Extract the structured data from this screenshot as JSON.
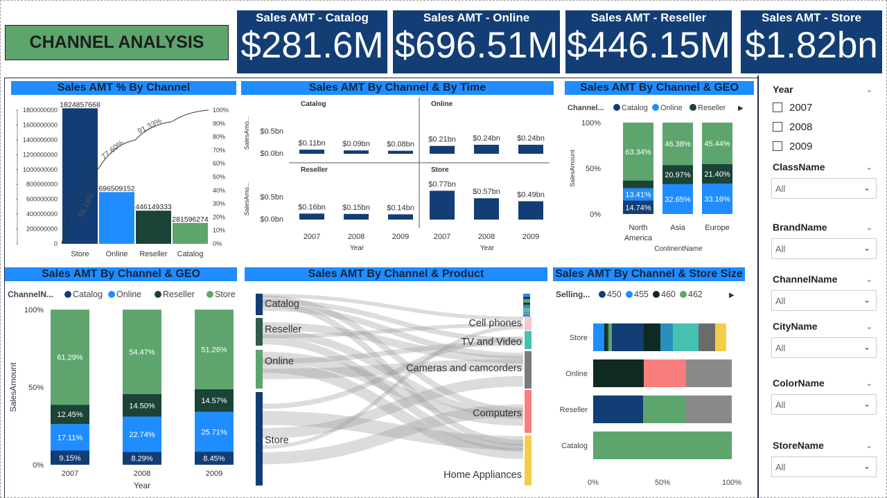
{
  "title": "CHANNEL ANALYSIS",
  "colors": {
    "navy": "#123d75",
    "catalog": "#123d75",
    "online": "#1f8dff",
    "reseller": "#1b4336",
    "store": "#5da56d",
    "header": "#1f8dff"
  },
  "kpis": [
    {
      "label": "Sales AMT - Catalog",
      "value": "$281.6M"
    },
    {
      "label": "Sales AMT - Online",
      "value": "$696.51M"
    },
    {
      "label": "Sales AMT - Reseller",
      "value": "$446.15M"
    },
    {
      "label": "Sales AMT - Store",
      "value": "$1.82bn"
    }
  ],
  "panels": {
    "pareto": "Sales AMT % By Channel",
    "time": "Sales AMT By Channel & By Time",
    "geo_top": "Sales AMT By Channel & GEO",
    "geo_bottom": "Sales AMT By Channel & GEO",
    "product": "Sales AMT By Channel & Product",
    "storesize": "Sales AMT By Channel & Store Size"
  },
  "chart_data": [
    {
      "type": "bar",
      "title": "Sales AMT % By Channel",
      "categories": [
        "Store",
        "Online",
        "Reseller",
        "Catalog"
      ],
      "values": [
        1824857668,
        696509152,
        446149333,
        281596274
      ],
      "value_labels": [
        "1824857668",
        "696509152",
        "446149333",
        "281596274"
      ],
      "cumulative_pct": [
        56.16,
        77.6,
        91.33,
        100
      ],
      "cumulative_labels": [
        "56.16%",
        "77.60%",
        "91.33%"
      ],
      "y_ticks": [
        "0",
        "200000000",
        "400000000",
        "600000000",
        "800000000",
        "1000000000",
        "1200000000",
        "1400000000",
        "1600000000",
        "1800000000"
      ],
      "y2_ticks": [
        "0%",
        "10%",
        "20%",
        "30%",
        "40%",
        "50%",
        "60%",
        "70%",
        "80%",
        "90%",
        "100%"
      ],
      "ylim": [
        0,
        1800000000
      ]
    },
    {
      "type": "bar",
      "title": "Sales AMT By Channel & By Time",
      "ylabel": "SalesAmo...",
      "xlabel": "Year",
      "y_ticks": [
        "$0.0bn",
        "$0.5bn"
      ],
      "ylim_bn": [
        0,
        1
      ],
      "facets": [
        {
          "name": "Catalog",
          "categories": [
            "2007",
            "2008",
            "2009"
          ],
          "values": [
            0.11,
            0.09,
            0.08
          ],
          "labels": [
            "$0.11bn",
            "$0.09bn",
            "$0.08bn"
          ]
        },
        {
          "name": "Online",
          "categories": [
            "2007",
            "2008",
            "2009"
          ],
          "values": [
            0.21,
            0.24,
            0.24
          ],
          "labels": [
            "$0.21bn",
            "$0.24bn",
            "$0.24bn"
          ]
        },
        {
          "name": "Reseller",
          "categories": [
            "2007",
            "2008",
            "2009"
          ],
          "values": [
            0.16,
            0.15,
            0.14
          ],
          "labels": [
            "$0.16bn",
            "$0.15bn",
            "$0.14bn"
          ]
        },
        {
          "name": "Store",
          "categories": [
            "2007",
            "2008",
            "2009"
          ],
          "values": [
            0.77,
            0.57,
            0.49
          ],
          "labels": [
            "$0.77bn",
            "$0.57bn",
            "$0.49bn"
          ]
        }
      ]
    },
    {
      "type": "bar",
      "stacked": "percent",
      "title": "Sales AMT By Channel & GEO",
      "legend_title": "Channel...",
      "ylabel": "SalesAmount",
      "xlabel": "ContinentName",
      "y_ticks": [
        "0%",
        "50%",
        "100%"
      ],
      "categories": [
        "North America",
        "Asia",
        "Europe"
      ],
      "category_lines": [
        [
          "North",
          "America"
        ],
        [
          "Asia"
        ],
        [
          "Europe"
        ]
      ],
      "series": [
        {
          "name": "Catalog",
          "values": [
            14.74,
            0,
            0
          ],
          "labels": [
            "14.74%",
            "",
            ""
          ]
        },
        {
          "name": "Online",
          "values": [
            13.41,
            32.65,
            33.16
          ],
          "labels": [
            "13.41%",
            "32.65%",
            "33.16%"
          ]
        },
        {
          "name": "Reseller",
          "values": [
            8.51,
            20.97,
            21.4
          ],
          "labels": [
            "",
            "20.97%",
            "21.40%"
          ]
        },
        {
          "name": "Store",
          "values": [
            63.34,
            46.38,
            45.44
          ],
          "labels": [
            "63.34%",
            "46.38%",
            "45.44%"
          ]
        }
      ],
      "legend": [
        "Catalog",
        "Online",
        "Reseller"
      ]
    },
    {
      "type": "bar",
      "stacked": "percent",
      "title": "Sales AMT By Channel & GEO",
      "legend_title": "ChannelN...",
      "ylabel": "SalesAmount",
      "xlabel": "Year",
      "y_ticks": [
        "0%",
        "50%",
        "100%"
      ],
      "categories": [
        "2007",
        "2008",
        "2009"
      ],
      "series": [
        {
          "name": "Catalog",
          "values": [
            9.15,
            8.29,
            8.45
          ],
          "labels": [
            "9.15%",
            "8.29%",
            "8.45%"
          ]
        },
        {
          "name": "Online",
          "values": [
            17.11,
            22.74,
            25.71
          ],
          "labels": [
            "17.11%",
            "22.74%",
            "25.71%"
          ]
        },
        {
          "name": "Reseller",
          "values": [
            12.45,
            14.5,
            14.57
          ],
          "labels": [
            "12.45%",
            "14.50%",
            "14.57%"
          ]
        },
        {
          "name": "Store",
          "values": [
            61.29,
            54.47,
            51.26
          ],
          "labels": [
            "61.29%",
            "54.47%",
            "51.26%"
          ]
        }
      ]
    },
    {
      "type": "sankey",
      "title": "Sales AMT By Channel & Product",
      "sources": [
        "Catalog",
        "Reseller",
        "Online",
        "Store"
      ],
      "targets": [
        "Cell phones",
        "TV and Video",
        "Cameras and camcorders",
        "Computers",
        "Home Appliances"
      ]
    },
    {
      "type": "bar",
      "stacked": "percent",
      "orientation": "horizontal",
      "title": "Sales AMT By Channel & Store Size",
      "legend_title": "Selling...",
      "legend": [
        {
          "name": "450",
          "color": "#123d75"
        },
        {
          "name": "455",
          "color": "#1f8dff"
        },
        {
          "name": "460",
          "color": "#0f2a22"
        },
        {
          "name": "462",
          "color": "#5da56d"
        }
      ],
      "x_ticks": [
        "0%",
        "50%",
        "100%"
      ],
      "categories": [
        "Store",
        "Online",
        "Reseller",
        "Catalog"
      ],
      "rows": [
        {
          "name": "Store",
          "segments": [
            [
              8,
              "#1f8dff"
            ],
            [
              1.5,
              "#0f2a22"
            ],
            [
              1.5,
              "#1b4336"
            ],
            [
              2.5,
              "#5da56d"
            ],
            [
              23,
              "#123d75"
            ],
            [
              12,
              "#0f2a22"
            ],
            [
              9,
              "#2a8fbd"
            ],
            [
              18.5,
              "#45c1b0"
            ],
            [
              12,
              "#6b6b6b"
            ],
            [
              8,
              "#f2cf48"
            ]
          ]
        },
        {
          "name": "Online",
          "segments": [
            [
              36.5,
              "#0f2a22"
            ],
            [
              30.5,
              "#f87d7d"
            ],
            [
              33,
              "#8a8a8a"
            ]
          ]
        },
        {
          "name": "Reseller",
          "segments": [
            [
              36,
              "#123d75"
            ],
            [
              31,
              "#5da56d"
            ],
            [
              33,
              "#8a8a8a"
            ]
          ]
        },
        {
          "name": "Catalog",
          "segments": [
            [
              100,
              "#5da56d"
            ]
          ]
        }
      ]
    }
  ],
  "slicers": {
    "year": {
      "title": "Year",
      "options": [
        "2007",
        "2008",
        "2009"
      ]
    },
    "dropdowns": [
      {
        "title": "ClassName",
        "value": "All"
      },
      {
        "title": "BrandName",
        "value": "All"
      },
      {
        "title": "ChannelName",
        "value": "All"
      },
      {
        "title": "CityName",
        "value": "All"
      },
      {
        "title": "ColorName",
        "value": "All"
      },
      {
        "title": "StoreName",
        "value": "All"
      }
    ]
  }
}
